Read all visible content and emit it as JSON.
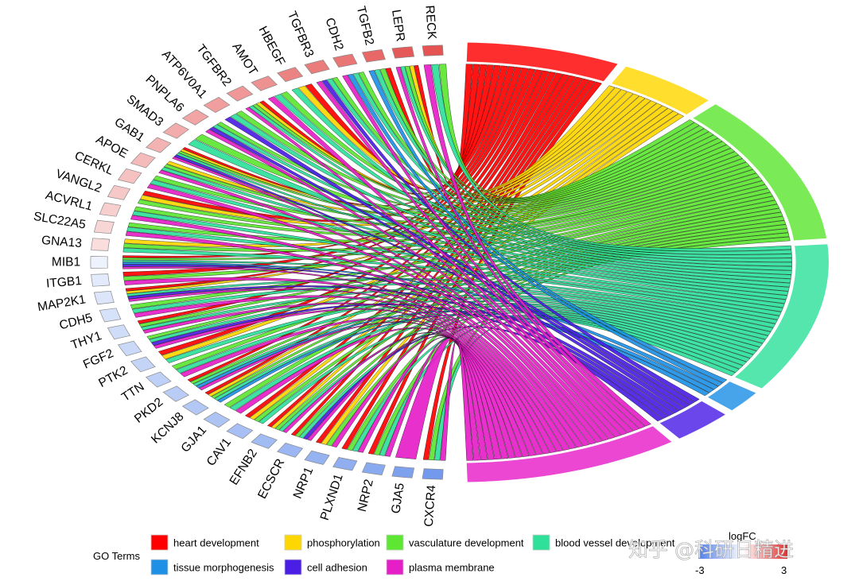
{
  "chart_data": {
    "type": "chord",
    "title": "",
    "genes": [
      "RECK",
      "LEPR",
      "TGFB2",
      "CDH2",
      "TGFBR3",
      "HBEGF",
      "AMOT",
      "TGFBR2",
      "ATP6V0A1",
      "PNPLA6",
      "SMAD3",
      "GAB1",
      "APOE",
      "CERKL",
      "VANGL2",
      "ACVRL1",
      "SLC22A5",
      "GNA13",
      "MIB1",
      "ITGB1",
      "MAP2K1",
      "CDH5",
      "THY1",
      "FGF2",
      "PTK2",
      "TTN",
      "PKD2",
      "KCNJ8",
      "GJA1",
      "CAV1",
      "EFNB2",
      "ECSCR",
      "NRP1",
      "PLXND1",
      "NRP2",
      "GJA5",
      "CXCR4"
    ],
    "logFC": [
      2.5,
      2.4,
      2.2,
      2.0,
      1.9,
      1.8,
      1.6,
      1.5,
      1.4,
      1.3,
      1.2,
      1.1,
      1.0,
      0.9,
      0.8,
      0.7,
      0.6,
      0.5,
      -0.3,
      -0.5,
      -0.6,
      -0.7,
      -0.8,
      -0.9,
      -1.0,
      -1.1,
      -1.2,
      -1.3,
      -1.4,
      -1.5,
      -1.6,
      -1.7,
      -1.8,
      -1.9,
      -2.0,
      -2.2,
      -2.4
    ],
    "go_terms": [
      {
        "name": "heart development",
        "color": "#FF0000",
        "gene_count": 20
      },
      {
        "name": "phosphorylation",
        "color": "#FFD700",
        "gene_count": 13
      },
      {
        "name": "vasculature development",
        "color": "#5DE632",
        "gene_count": 33
      },
      {
        "name": "blood vessel development",
        "color": "#2EE09A",
        "gene_count": 33
      },
      {
        "name": "tissue morphogenesis",
        "color": "#1E90E6",
        "gene_count": 5
      },
      {
        "name": "cell adhesion",
        "color": "#4B1EE6",
        "gene_count": 8
      },
      {
        "name": "plasma membrane",
        "color": "#E61EC8",
        "gene_count": 28
      }
    ],
    "legend": {
      "title": "GO Terms",
      "position": "bottom"
    },
    "color_scale": {
      "title": "logFC",
      "min": -3,
      "max": 3,
      "min_label": "-3",
      "max_label": "3",
      "low_color": "#4F7FE8",
      "mid_color": "#FFFFFF",
      "high_color": "#E03030"
    }
  },
  "watermark": "知乎 @科研日精进"
}
